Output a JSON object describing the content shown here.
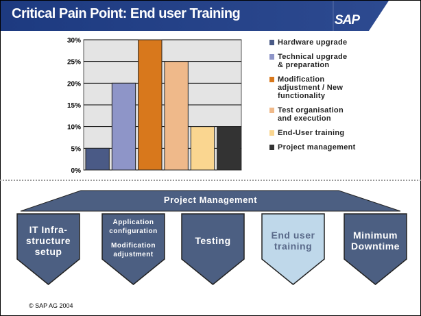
{
  "header": {
    "title": "Critical Pain Point: End user Training",
    "logo": "SAP"
  },
  "chart_data": {
    "type": "bar",
    "categories": [
      "Hardware upgrade",
      "Technical upgrade & preparation",
      "Modification adjustment / New functionality",
      "Test organisation and execution",
      "End-User training",
      "Project management"
    ],
    "values": [
      5,
      20,
      30,
      25,
      10,
      10
    ],
    "colors": [
      "#4a5a86",
      "#8e95c8",
      "#d8781c",
      "#efb98a",
      "#fad690",
      "#333333"
    ],
    "yticks": [
      "0%",
      "5%",
      "10%",
      "15%",
      "20%",
      "25%",
      "30%"
    ],
    "ylim": [
      0,
      30
    ],
    "grid": true,
    "legend_position": "right",
    "legend": [
      {
        "lines": [
          "Hardware upgrade"
        ]
      },
      {
        "lines": [
          "Technical upgrade",
          "& preparation"
        ]
      },
      {
        "lines": [
          "Modification",
          "adjustment / New",
          "functionality"
        ]
      },
      {
        "lines": [
          "Test organisation",
          "and execution"
        ]
      },
      {
        "lines": [
          "End-User training"
        ]
      },
      {
        "lines": [
          "Project management"
        ]
      }
    ]
  },
  "diagram": {
    "banner": "Project Management",
    "phases": [
      {
        "lines": [
          "IT Infra-",
          "structure",
          "setup"
        ],
        "highlight": false
      },
      {
        "lines": [
          "Application",
          "configuration",
          "",
          "Modification",
          "adjustment"
        ],
        "highlight": false
      },
      {
        "lines": [
          "Testing"
        ],
        "highlight": false
      },
      {
        "lines": [
          "End user",
          "training"
        ],
        "highlight": true
      },
      {
        "lines": [
          "Minimum",
          "Downtime"
        ],
        "highlight": false
      }
    ]
  },
  "footer": {
    "copyright": "©  SAP AG 2004"
  }
}
